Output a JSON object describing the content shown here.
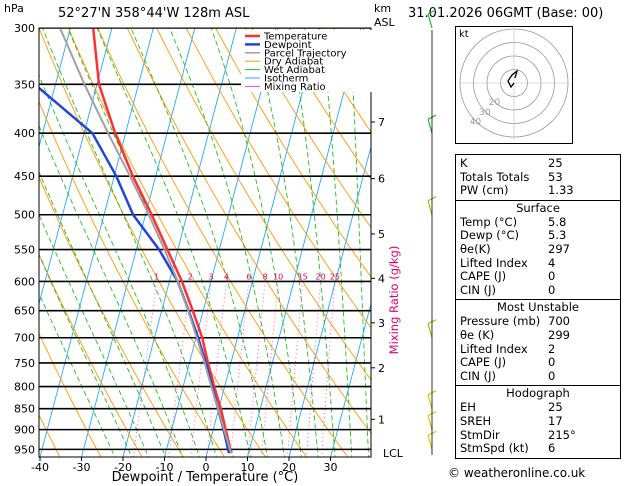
{
  "header": {
    "hpa_label": "hPa",
    "location": "52°27'N  358°44'W  128m  ASL",
    "km_label": "km",
    "asl_label": "ASL",
    "datetime": "31.01.2026  06GMT  (Base: 00)"
  },
  "chart_data": {
    "type": "line",
    "title": "",
    "xlabel": "Dewpoint / Temperature (°C)",
    "ylabel": "hPa",
    "y2label": "Mixing Ratio (g/kg)",
    "x_ticks": [
      -40,
      -30,
      -20,
      -10,
      0,
      10,
      20,
      30
    ],
    "xlim": [
      -40,
      40
    ],
    "pressure_levels": [
      300,
      350,
      400,
      450,
      500,
      550,
      600,
      650,
      700,
      750,
      800,
      850,
      900,
      950
    ],
    "ylim_hpa": [
      970,
      300
    ],
    "km_levels": [
      {
        "km": "1",
        "p": 875
      },
      {
        "km": "2",
        "p": 760
      },
      {
        "km": "3",
        "p": 672
      },
      {
        "km": "4",
        "p": 595
      },
      {
        "km": "5",
        "p": 527
      },
      {
        "km": "6",
        "p": 453
      },
      {
        "km": "7",
        "p": 388
      }
    ],
    "lcl_label": "LCL",
    "lcl_p": 960,
    "mixing_ratio_labels": [
      "1",
      "2",
      "3",
      "4",
      "6",
      "8",
      "10",
      "15",
      "20",
      "25"
    ],
    "mixing_ratio_values": [
      1,
      2,
      3,
      4,
      6,
      8,
      10,
      15,
      20,
      25
    ],
    "legend_position": "top-right",
    "legend": [
      {
        "name": "Temperature",
        "color": "#ff3030",
        "width": 2
      },
      {
        "name": "Dewpoint",
        "color": "#2244dd",
        "width": 2
      },
      {
        "name": "Parcel Trajectory",
        "color": "#a0a0a0",
        "width": 1.5
      },
      {
        "name": "Dry Adiabat",
        "color": "#ff9900",
        "width": 1
      },
      {
        "name": "Wet Adiabat",
        "color": "#22bb22",
        "width": 1
      },
      {
        "name": "Isotherm",
        "color": "#22aaff",
        "width": 1
      },
      {
        "name": "Mixing Ratio",
        "color": "#ff44cc",
        "width": 1
      }
    ],
    "series": [
      {
        "name": "Temperature",
        "color": "#ff3030",
        "p": [
          960,
          900,
          850,
          800,
          750,
          700,
          650,
          600,
          550,
          500,
          450,
          400,
          350,
          300
        ],
        "t": [
          5.8,
          3.0,
          0.5,
          -2.5,
          -5.5,
          -8.5,
          -12.5,
          -17.0,
          -22.5,
          -28.5,
          -35.5,
          -42.5,
          -49.5,
          -54.5
        ]
      },
      {
        "name": "Dewpoint",
        "color": "#2244dd",
        "p": [
          960,
          900,
          850,
          800,
          750,
          700,
          650,
          600,
          550,
          500,
          450,
          400,
          350,
          300
        ],
        "t": [
          5.3,
          2.5,
          -0.2,
          -3.0,
          -6.0,
          -9.5,
          -13.5,
          -18.0,
          -24.5,
          -33.0,
          -39.5,
          -48.0,
          -65.0,
          -68.0
        ]
      },
      {
        "name": "Parcel Trajectory",
        "color": "#a0a0a0",
        "p": [
          960,
          900,
          850,
          800,
          750,
          700,
          650,
          600,
          550,
          500,
          450,
          400,
          350,
          300
        ],
        "t": [
          5.8,
          2.6,
          -0.2,
          -3.2,
          -6.3,
          -9.8,
          -13.6,
          -18.0,
          -23.2,
          -29.2,
          -36.2,
          -44.2,
          -53.0,
          -62.5
        ]
      }
    ],
    "wind_barbs_p": [
      300,
      400,
      500,
      700,
      850,
      900,
      950
    ]
  },
  "hodograph": {
    "label": "kt",
    "ring_labels": [
      "20",
      "30",
      "40"
    ]
  },
  "indices": {
    "top": [
      {
        "k": "K",
        "v": "25"
      },
      {
        "k": "Totals Totals",
        "v": "53"
      },
      {
        "k": "PW (cm)",
        "v": "1.33"
      }
    ],
    "surface": {
      "title": "Surface",
      "rows": [
        {
          "k": "Temp (°C)",
          "v": "5.8"
        },
        {
          "k": "Dewp (°C)",
          "v": "5.3"
        },
        {
          "k": "θe(K)",
          "v": "297"
        },
        {
          "k": "Lifted Index",
          "v": "4"
        },
        {
          "k": "CAPE (J)",
          "v": "0"
        },
        {
          "k": "CIN (J)",
          "v": "0"
        }
      ]
    },
    "most_unstable": {
      "title": "Most Unstable",
      "rows": [
        {
          "k": "Pressure (mb)",
          "v": "700"
        },
        {
          "k": "θe (K)",
          "v": "299"
        },
        {
          "k": "Lifted Index",
          "v": "2"
        },
        {
          "k": "CAPE (J)",
          "v": "0"
        },
        {
          "k": "CIN (J)",
          "v": "0"
        }
      ]
    },
    "hodograph": {
      "title": "Hodograph",
      "rows": [
        {
          "k": "EH",
          "v": "25"
        },
        {
          "k": "SREH",
          "v": "17"
        },
        {
          "k": "StmDir",
          "v": "215°"
        },
        {
          "k": "StmSpd (kt)",
          "v": "6"
        }
      ]
    }
  },
  "footer": {
    "copyright": "© weatheronline.co.uk"
  }
}
